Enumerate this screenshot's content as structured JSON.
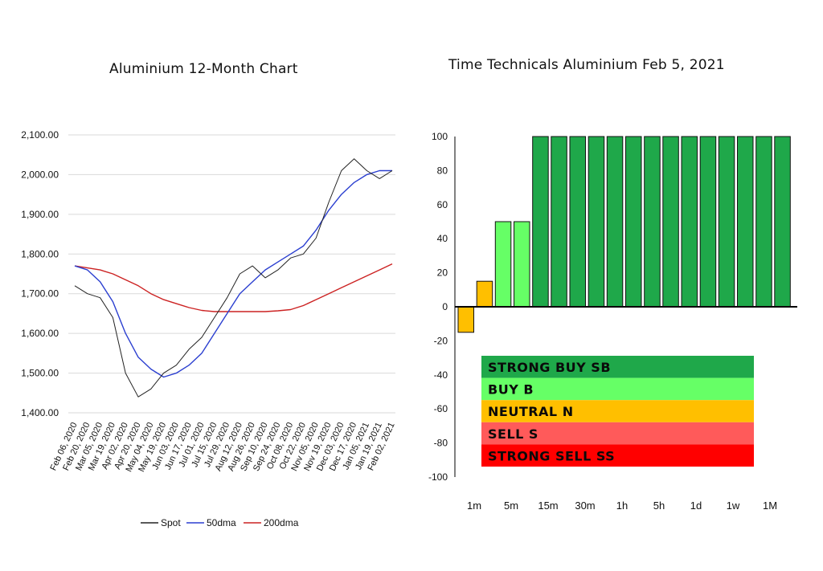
{
  "colors": {
    "spot": "#222222",
    "dma50": "#2b3fd0",
    "dma200": "#cc2222",
    "strong_buy": "#1fa84a",
    "buy": "#66ff66",
    "neutral": "#ffbf00",
    "sell": "#ff5a5a",
    "strong_sell": "#ff0000",
    "grid": "#d9d9d9"
  },
  "chart_data": [
    {
      "type": "line",
      "title": "Aluminium 12-Month Chart",
      "ylim": [
        1400,
        2100
      ],
      "yticks": [
        "1,400.00",
        "1,500.00",
        "1,600.00",
        "1,700.00",
        "1,800.00",
        "1,900.00",
        "2,000.00",
        "2,100.00"
      ],
      "ytick_values": [
        1400,
        1500,
        1600,
        1700,
        1800,
        1900,
        2000,
        2100
      ],
      "x": [
        "Feb 06, 2020",
        "Feb 20, 2020",
        "Mar 05, 2020",
        "Mar 19, 2020",
        "Apr 02, 2020",
        "Apr 20, 2020",
        "May 04, 2020",
        "May 19, 2020",
        "Jun 03, 2020",
        "Jun 17, 2020",
        "Jul 01, 2020",
        "Jul 15, 2020",
        "Jul 29, 2020",
        "Aug 12, 2020",
        "Aug 26, 2020",
        "Sep 10, 2020",
        "Sep 24, 2020",
        "Oct 08, 2020",
        "Oct 22, 2020",
        "Nov 05, 2020",
        "Nov 19, 2020",
        "Dec 03, 2020",
        "Dec 17, 2020",
        "Jan 05, 2021",
        "Jan 19, 2021",
        "Feb 02, 2021"
      ],
      "legend": [
        "Spot",
        "50dma",
        "200dma"
      ],
      "series": [
        {
          "name": "Spot",
          "values": [
            1720,
            1700,
            1690,
            1640,
            1500,
            1440,
            1460,
            1500,
            1520,
            1560,
            1590,
            1640,
            1690,
            1750,
            1770,
            1740,
            1760,
            1790,
            1800,
            1840,
            1930,
            2010,
            2040,
            2010,
            1990,
            2010
          ]
        },
        {
          "name": "50dma",
          "values": [
            1770,
            1760,
            1730,
            1680,
            1600,
            1540,
            1510,
            1490,
            1500,
            1520,
            1550,
            1600,
            1650,
            1700,
            1730,
            1760,
            1780,
            1800,
            1820,
            1860,
            1910,
            1950,
            1980,
            2000,
            2010,
            2010
          ]
        },
        {
          "name": "200dma",
          "values": [
            1770,
            1765,
            1760,
            1750,
            1735,
            1720,
            1700,
            1685,
            1675,
            1665,
            1658,
            1655,
            1655,
            1655,
            1655,
            1655,
            1657,
            1660,
            1670,
            1685,
            1700,
            1715,
            1730,
            1745,
            1760,
            1775
          ]
        }
      ]
    },
    {
      "type": "bar",
      "title": "Time Technicals Aluminium Feb 5, 2021",
      "ylim": [
        -100,
        100
      ],
      "yticks": [
        "100",
        "80",
        "60",
        "40",
        "20",
        "0",
        "-20",
        "-40",
        "-60",
        "-80",
        "-100"
      ],
      "ytick_values": [
        100,
        80,
        60,
        40,
        20,
        0,
        -20,
        -40,
        -60,
        -80,
        -100
      ],
      "category_labels": [
        "1m",
        "5m",
        "15m",
        "30m",
        "1h",
        "5h",
        "1d",
        "1w",
        "1M"
      ],
      "values": [
        -15,
        15,
        50,
        50,
        100,
        100,
        100,
        100,
        100,
        100,
        100,
        100,
        100,
        100,
        100,
        100,
        100,
        100
      ],
      "signal_classes": [
        "neutral",
        "neutral",
        "buy",
        "buy",
        "strong_buy",
        "strong_buy",
        "strong_buy",
        "strong_buy",
        "strong_buy",
        "strong_buy",
        "strong_buy",
        "strong_buy",
        "strong_buy",
        "strong_buy",
        "strong_buy",
        "strong_buy",
        "strong_buy",
        "strong_buy"
      ],
      "signal_legend": [
        {
          "label": "STRONG BUY   SB",
          "class": "strong_buy"
        },
        {
          "label": "BUY   B",
          "class": "buy"
        },
        {
          "label": "NEUTRAL   N",
          "class": "neutral"
        },
        {
          "label": "SELL   S",
          "class": "sell"
        },
        {
          "label": "STRONG SELL   SS",
          "class": "strong_sell"
        }
      ]
    }
  ]
}
